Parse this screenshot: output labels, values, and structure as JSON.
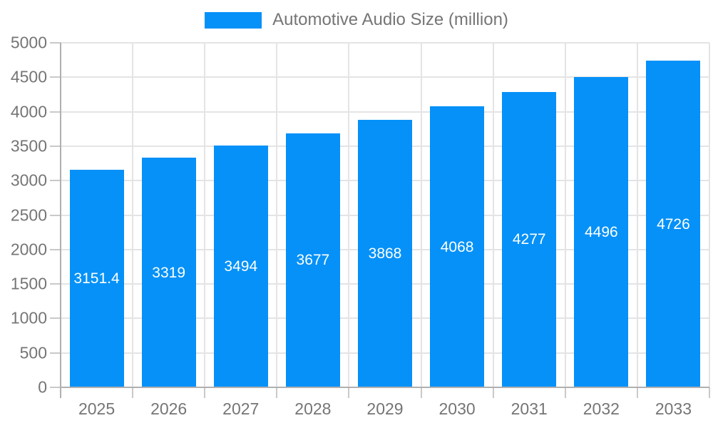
{
  "legend": {
    "label": "Automotive Audio Size (million)"
  },
  "colors": {
    "bar": "#0591f8",
    "bar_label_text": "#ffffff",
    "axis_line": "#b0b0b0",
    "tick": "#c9c9c9",
    "gridline": "#e4e4e4",
    "axis_text": "#757575",
    "background": "#ffffff"
  },
  "chart_data": {
    "type": "bar",
    "title": "Automotive Audio Size (million)",
    "categories": [
      "2025",
      "2026",
      "2027",
      "2028",
      "2029",
      "2030",
      "2031",
      "2032",
      "2033"
    ],
    "series": [
      {
        "name": "Automotive Audio Size (million)",
        "values": [
          3151.4,
          3319,
          3494,
          3677,
          3868,
          4068,
          4277,
          4496,
          4726
        ]
      }
    ],
    "bar_labels": [
      "3151.4",
      "3319",
      "3494",
      "3677",
      "3868",
      "4068",
      "4277",
      "4496",
      "4726"
    ],
    "xlabel": "",
    "ylabel": "",
    "ylim": [
      0,
      5000
    ],
    "yticks": [
      0,
      500,
      1000,
      1500,
      2000,
      2500,
      3000,
      3500,
      4000,
      4500,
      5000
    ],
    "grid": true,
    "legend_position": "top",
    "value_label_position": "middle-inside"
  }
}
